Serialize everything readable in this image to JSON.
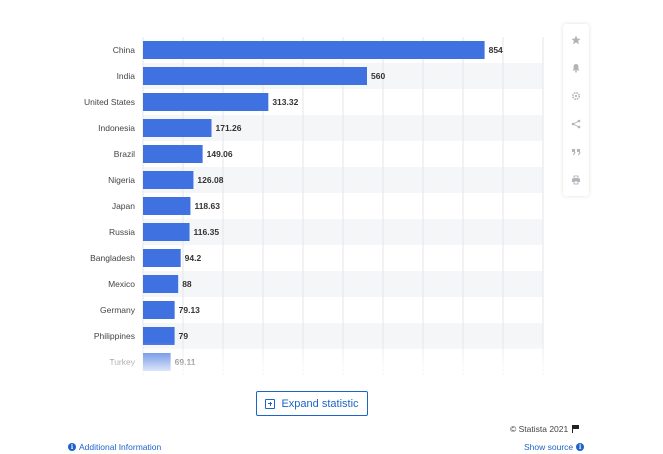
{
  "chart_data": {
    "type": "bar",
    "orientation": "horizontal",
    "categories": [
      "China",
      "India",
      "United States",
      "Indonesia",
      "Brazil",
      "Nigeria",
      "Japan",
      "Russia",
      "Bangladesh",
      "Mexico",
      "Germany",
      "Philippines",
      "Turkey"
    ],
    "values": [
      854,
      560,
      313.32,
      171.26,
      149.06,
      126.08,
      118.63,
      116.35,
      94.2,
      88,
      79.13,
      79,
      69.11
    ],
    "value_labels": [
      "854",
      "560",
      "313.32",
      "171.26",
      "149.06",
      "126.08",
      "118.63",
      "116.35",
      "94.2",
      "88",
      "79.13",
      "79",
      "69.11"
    ],
    "xlim": [
      0,
      1000
    ],
    "grid": true,
    "bar_color": "#4071e0",
    "title": "",
    "xlabel": "",
    "ylabel": ""
  },
  "toolbar": {
    "icons": [
      "star-icon",
      "bell-icon",
      "gear-icon",
      "share-icon",
      "quote-icon",
      "print-icon"
    ]
  },
  "expand_button": {
    "label": "Expand statistic"
  },
  "footer": {
    "copyright": "© Statista 2021",
    "show_source": "Show source",
    "additional_info": "Additional Information"
  },
  "colors": {
    "accent": "#1e63c8",
    "bar": "#4071e0"
  }
}
